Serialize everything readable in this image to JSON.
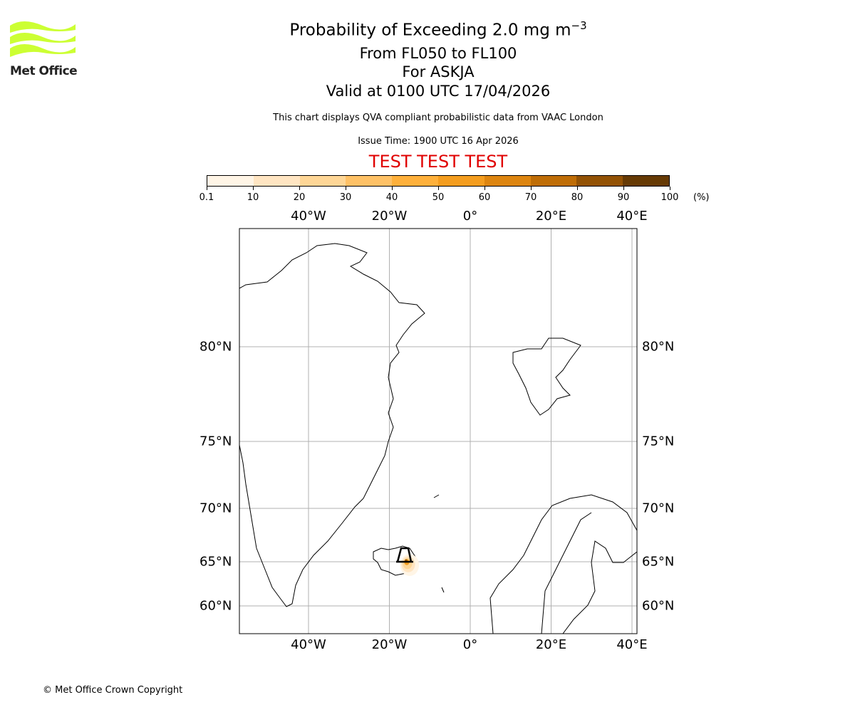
{
  "header": {
    "title": "Probability of Exceeding 2.0 mg m",
    "title_superscript": "−3",
    "line2": "From FL050 to FL100",
    "line3": "For ASKJA",
    "line4": "Valid at 0100 UTC 17/04/2026",
    "description": "This chart displays QVA compliant probabilistic data from VAAC London",
    "issue_time": "Issue Time: 1900 UTC 16 Apr 2026",
    "test_banner": "TEST TEST TEST"
  },
  "logo": {
    "text": "Met Office",
    "color": "#ccff33"
  },
  "colorbar": {
    "ticks": [
      "0.1",
      "10",
      "20",
      "30",
      "40",
      "50",
      "60",
      "70",
      "80",
      "90",
      "100"
    ],
    "unit": "(%)",
    "colors": [
      "#fff5e6",
      "#ffe5c2",
      "#fed696",
      "#fec166",
      "#feb03b",
      "#f49d1f",
      "#dd8510",
      "#bf6d06",
      "#935204",
      "#663a04"
    ]
  },
  "map": {
    "lon_labels": [
      "40°W",
      "20°W",
      "0°",
      "20°E",
      "40°E"
    ],
    "lon_values": [
      -40,
      -20,
      0,
      20,
      40
    ],
    "lat_labels": [
      "80°N",
      "75°N",
      "70°N",
      "65°N",
      "60°N"
    ],
    "lat_values": [
      80,
      75,
      70,
      65,
      60
    ],
    "volcano": {
      "name": "ASKJA",
      "lat": 65.03,
      "lon": -16.75
    }
  },
  "footer": {
    "copyright": "© Met Office Crown Copyright"
  }
}
